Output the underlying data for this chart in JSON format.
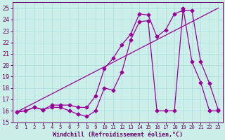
{
  "xlabel": "Windchill (Refroidissement éolien,°C)",
  "background_color": "#cceee8",
  "line_color": "#990099",
  "xlim": [
    -0.5,
    23.5
  ],
  "ylim": [
    15.0,
    25.5
  ],
  "yticks": [
    15,
    16,
    17,
    18,
    19,
    20,
    21,
    22,
    23,
    24,
    25
  ],
  "xticks": [
    0,
    1,
    2,
    3,
    4,
    5,
    6,
    7,
    8,
    9,
    10,
    11,
    12,
    13,
    14,
    15,
    16,
    17,
    18,
    19,
    20,
    21,
    22,
    23
  ],
  "series1_x": [
    0,
    1,
    2,
    3,
    4,
    5,
    6,
    7,
    8,
    9,
    10,
    11,
    12,
    13,
    14,
    15,
    16,
    17,
    18,
    19,
    20,
    21,
    22,
    23
  ],
  "series1_y": [
    15.9,
    16.0,
    16.3,
    16.1,
    16.3,
    16.3,
    16.0,
    15.7,
    15.5,
    16.0,
    18.0,
    17.8,
    19.4,
    22.2,
    23.8,
    23.9,
    16.0,
    16.0,
    16.0,
    25.0,
    20.3,
    18.5,
    16.0,
    16.0
  ],
  "series2_x": [
    0,
    1,
    2,
    3,
    4,
    5,
    6,
    7,
    8,
    9,
    10,
    11,
    12,
    13,
    14,
    15,
    16,
    17,
    18,
    19,
    20,
    21,
    22,
    23
  ],
  "series2_y": [
    15.9,
    16.0,
    16.3,
    16.1,
    16.5,
    16.5,
    16.5,
    16.3,
    16.3,
    17.3,
    19.7,
    20.6,
    21.8,
    22.7,
    24.5,
    24.4,
    22.5,
    23.1,
    24.5,
    24.8,
    24.8,
    20.3,
    18.4,
    16.1
  ],
  "trend_x": [
    0,
    23
  ],
  "trend_y": [
    15.9,
    25.0
  ],
  "grid_color": "#aadddd",
  "marker": "D",
  "marker_size": 2.5,
  "line_width": 0.9,
  "font_color": "#660066",
  "xlabel_fontsize": 6.0,
  "tick_fontsize": 6.0,
  "tick_x_fontsize": 5.2
}
